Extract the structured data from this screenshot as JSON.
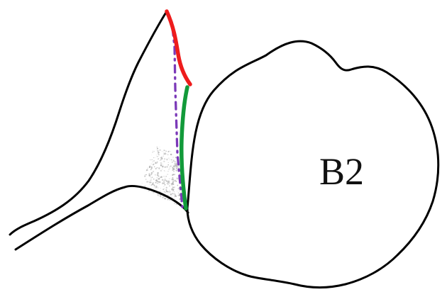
{
  "labels": {
    "cell_label": "B2"
  },
  "colors": {
    "outline": "#000000",
    "upper_curve": "#ee1c1c",
    "lower_curve": "#129a3a",
    "dash_dot_line": "#7b39b8",
    "shading": "#a8a8a8",
    "background": "#ffffff"
  }
}
